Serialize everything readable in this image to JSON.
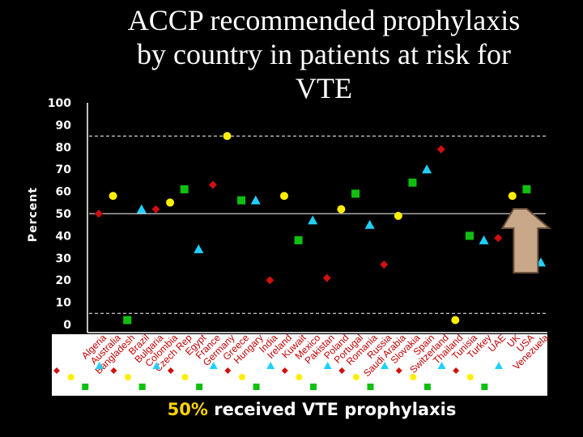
{
  "slide": {
    "title_lines": [
      "ACCP recommended prophylaxis",
      "by country in patients at risk for",
      "VTE"
    ],
    "footer_percent": "50%",
    "footer_text": "received VTE prophylaxis"
  },
  "chart_data": {
    "type": "scatter",
    "title": "ACCP recommended prophylaxis by country in patients at risk for VTE",
    "xlabel": "",
    "ylabel": "Percent",
    "ylim": [
      0,
      100
    ],
    "yticks": [
      0,
      10,
      20,
      30,
      40,
      50,
      60,
      70,
      80,
      90,
      100
    ],
    "reference_lines": [
      {
        "value": 85,
        "style": "dashed"
      },
      {
        "value": 50,
        "style": "solid"
      },
      {
        "value": 5,
        "style": "dashed"
      }
    ],
    "highlight_arrow": {
      "category": "USA",
      "direction": "up"
    },
    "colors": {
      "red": "#d01010",
      "yellow": "#ffee00",
      "green": "#10c010",
      "cyan": "#20d0ff",
      "label": "#c00000",
      "arrow": "#c8a888"
    },
    "categories": [
      "Algeria",
      "Australia",
      "Bangladesh",
      "Brazil",
      "Bulgaria",
      "Colombia",
      "Czech Rep",
      "Egypt",
      "France",
      "Germany",
      "Greece",
      "Hungary",
      "India",
      "Ireland",
      "Kuwait",
      "Mexico",
      "Pakistan",
      "Poland",
      "Portugal",
      "Romania",
      "Russia",
      "Saudi Arabia",
      "Slovakia",
      "Spain",
      "Switzerland",
      "Thailand",
      "Tunisia",
      "Turkey",
      "UAE",
      "UK",
      "USA",
      "Venezuela"
    ],
    "marker_colors": [
      "red",
      "yellow",
      "green",
      "cyan",
      "red",
      "yellow",
      "green",
      "cyan",
      "red",
      "yellow",
      "green",
      "cyan",
      "red",
      "yellow",
      "green",
      "cyan",
      "red",
      "yellow",
      "green",
      "cyan",
      "red",
      "yellow",
      "green",
      "cyan",
      "red",
      "yellow",
      "green",
      "cyan",
      "red",
      "yellow",
      "green",
      "cyan"
    ],
    "values": [
      50,
      58,
      2,
      52,
      52,
      55,
      61,
      34,
      63,
      85,
      56,
      56,
      20,
      58,
      38,
      47,
      21,
      52,
      59,
      45,
      27,
      49,
      64,
      70,
      79,
      2,
      40,
      38,
      39,
      58,
      61,
      28
    ]
  }
}
